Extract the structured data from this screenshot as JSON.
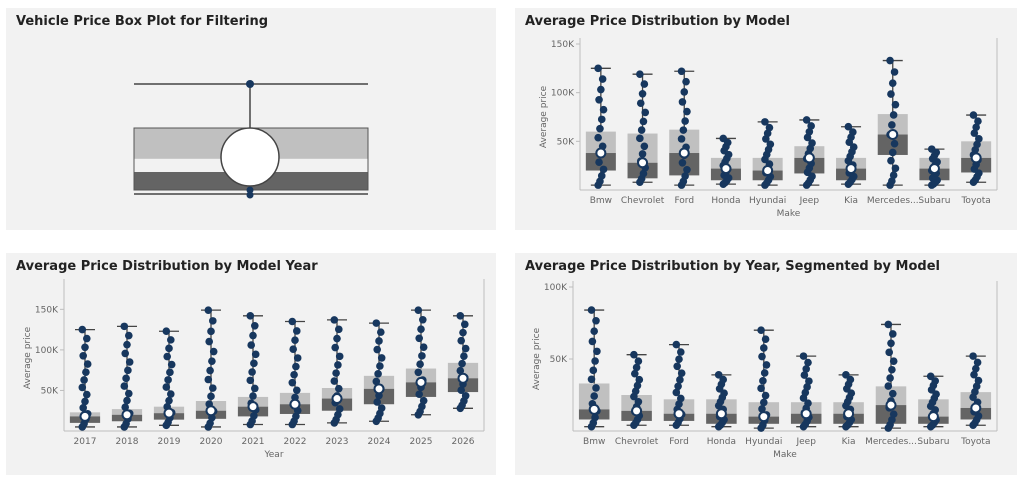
{
  "colors": {
    "panel_bg": "#f2f2f2",
    "box_light": "#c0c0c0",
    "box_dark": "#646464",
    "dot": "#17375e",
    "median_ring": "#ffffff",
    "whisker": "#444444",
    "axis": "#bdbdbd"
  },
  "panels": {
    "p1": {
      "title": "Vehicle Price Box Plot for Filtering"
    },
    "p2": {
      "title": "Average Price Distribution by Model"
    },
    "p3": {
      "title": "Average Price Distribution by Model Year"
    },
    "p4": {
      "title": "Average Price Distribution by Year, Segmented by Model"
    }
  },
  "chart_data": [
    {
      "type": "box",
      "title": "Vehicle Price Box Plot for Filtering",
      "orientation": "horizontal",
      "values": {
        "min": 0,
        "q1": 0.32,
        "median": 0.5,
        "q3": 0.6,
        "max": 1
      },
      "axis_visible": false
    },
    {
      "type": "box",
      "title": "Average Price Distribution by Model",
      "xlabel": "Make",
      "ylabel": "Average price",
      "ylim": [
        0,
        150000
      ],
      "yticks": [
        50000,
        100000,
        150000
      ],
      "ytick_labels": [
        "50K",
        "100K",
        "150K"
      ],
      "categories": [
        "Bmw",
        "Chevrolet",
        "Ford",
        "Honda",
        "Hyundai",
        "Jeep",
        "Kia",
        "Mercedes...",
        "Subaru",
        "Toyota"
      ],
      "boxes": [
        {
          "min": 5000,
          "q1": 20000,
          "median": 38000,
          "q3": 60000,
          "max": 125000
        },
        {
          "min": 8000,
          "q1": 12000,
          "median": 28000,
          "q3": 58000,
          "max": 119000
        },
        {
          "min": 5000,
          "q1": 15000,
          "median": 38000,
          "q3": 62000,
          "max": 122000
        },
        {
          "min": 6000,
          "q1": 10000,
          "median": 22000,
          "q3": 33000,
          "max": 53000
        },
        {
          "min": 5000,
          "q1": 10000,
          "median": 20000,
          "q3": 33000,
          "max": 70000
        },
        {
          "min": 5000,
          "q1": 17000,
          "median": 33000,
          "q3": 45000,
          "max": 72000
        },
        {
          "min": 6000,
          "q1": 10000,
          "median": 22000,
          "q3": 33000,
          "max": 65000
        },
        {
          "min": 5000,
          "q1": 36000,
          "median": 57000,
          "q3": 78000,
          "max": 133000
        },
        {
          "min": 5000,
          "q1": 10000,
          "median": 22000,
          "q3": 33000,
          "max": 42000
        },
        {
          "min": 8000,
          "q1": 18000,
          "median": 33000,
          "q3": 50000,
          "max": 77000
        }
      ]
    },
    {
      "type": "box",
      "title": "Average Price Distribution by Model Year",
      "xlabel": "Year",
      "ylabel": "Average price",
      "ylim": [
        0,
        180000
      ],
      "yticks": [
        50000,
        100000,
        150000
      ],
      "ytick_labels": [
        "50K",
        "100K",
        "150K"
      ],
      "categories": [
        "2017",
        "2018",
        "2019",
        "2020",
        "2021",
        "2022",
        "2023",
        "2024",
        "2025",
        "2026"
      ],
      "boxes": [
        {
          "min": 5000,
          "q1": 10000,
          "median": 18000,
          "q3": 23000,
          "max": 125000
        },
        {
          "min": 5000,
          "q1": 12000,
          "median": 20000,
          "q3": 27000,
          "max": 129000
        },
        {
          "min": 7000,
          "q1": 14000,
          "median": 22000,
          "q3": 30000,
          "max": 123000
        },
        {
          "min": 5000,
          "q1": 15000,
          "median": 25000,
          "q3": 37000,
          "max": 149000
        },
        {
          "min": 8000,
          "q1": 18000,
          "median": 30000,
          "q3": 42000,
          "max": 142000
        },
        {
          "min": 8000,
          "q1": 21000,
          "median": 33000,
          "q3": 47000,
          "max": 135000
        },
        {
          "min": 10000,
          "q1": 25000,
          "median": 40000,
          "q3": 53000,
          "max": 137000
        },
        {
          "min": 12000,
          "q1": 33000,
          "median": 52000,
          "q3": 68000,
          "max": 133000
        },
        {
          "min": 20000,
          "q1": 42000,
          "median": 60000,
          "q3": 77000,
          "max": 149000
        },
        {
          "min": 28000,
          "q1": 48000,
          "median": 65000,
          "q3": 84000,
          "max": 142000
        }
      ]
    },
    {
      "type": "box",
      "title": "Average Price Distribution by Year, Segmented by Model",
      "xlabel": "Make",
      "ylabel": "Average price",
      "ylim": [
        0,
        100000
      ],
      "yticks": [
        50000,
        100000
      ],
      "ytick_labels": [
        "50K",
        "100K"
      ],
      "categories": [
        "Bmw",
        "Chevrolet",
        "Ford",
        "Honda",
        "Hyundai",
        "Jeep",
        "Kia",
        "Mercedes...",
        "Subaru",
        "Toyota"
      ],
      "boxes": [
        {
          "min": 3000,
          "q1": 8000,
          "median": 15000,
          "q3": 33000,
          "max": 84000
        },
        {
          "min": 4000,
          "q1": 7000,
          "median": 14000,
          "q3": 25000,
          "max": 53000
        },
        {
          "min": 4000,
          "q1": 7000,
          "median": 12000,
          "q3": 22000,
          "max": 60000
        },
        {
          "min": 3000,
          "q1": 5000,
          "median": 12000,
          "q3": 22000,
          "max": 39000
        },
        {
          "min": 2000,
          "q1": 5000,
          "median": 10000,
          "q3": 20000,
          "max": 70000
        },
        {
          "min": 3000,
          "q1": 5000,
          "median": 12000,
          "q3": 20000,
          "max": 52000
        },
        {
          "min": 3000,
          "q1": 5000,
          "median": 12000,
          "q3": 20000,
          "max": 39000
        },
        {
          "min": 2000,
          "q1": 5000,
          "median": 18000,
          "q3": 31000,
          "max": 74000
        },
        {
          "min": 3000,
          "q1": 5000,
          "median": 10000,
          "q3": 22000,
          "max": 38000
        },
        {
          "min": 4000,
          "q1": 8000,
          "median": 16000,
          "q3": 27000,
          "max": 52000
        }
      ]
    }
  ]
}
